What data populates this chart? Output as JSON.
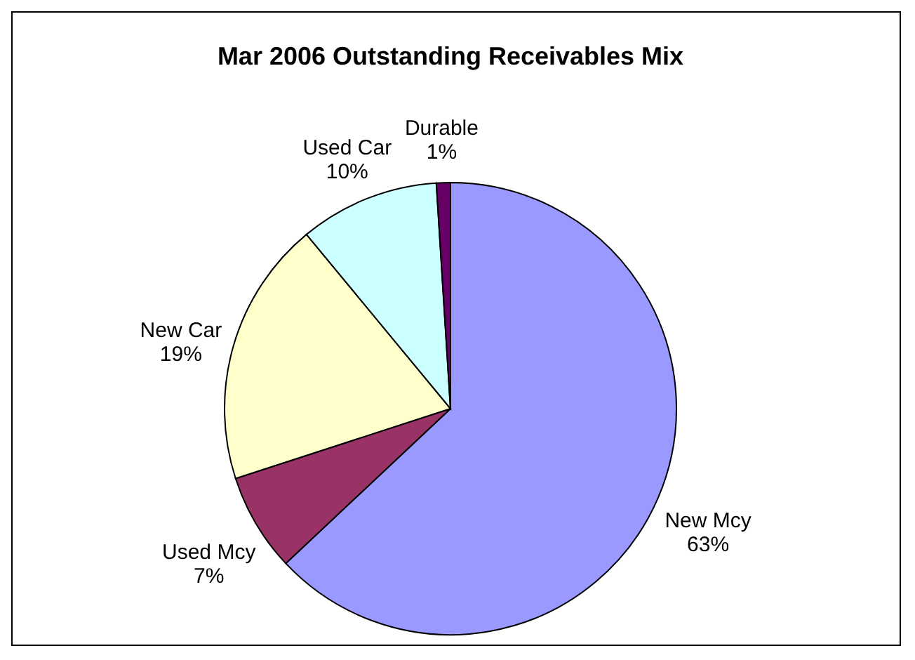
{
  "chart_data": {
    "type": "pie",
    "title": "Mar 2006 Outstanding Receivables Mix",
    "categories": [
      "New Mcy",
      "Used Mcy",
      "New Car",
      "Used Car",
      "Durable"
    ],
    "values": [
      63,
      7,
      19,
      10,
      1
    ],
    "value_labels": [
      "63%",
      "7%",
      "19%",
      "10%",
      "1%"
    ],
    "colors": [
      "#9999ff",
      "#993366",
      "#ffffcc",
      "#ccffff",
      "#660066"
    ],
    "legend": false
  }
}
